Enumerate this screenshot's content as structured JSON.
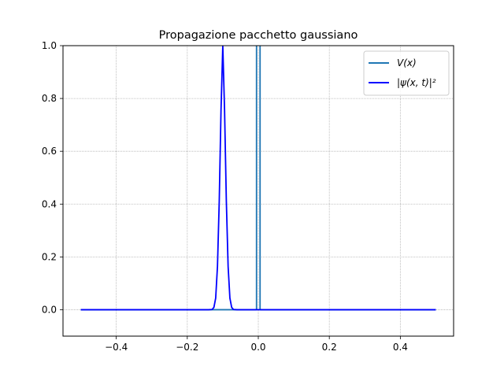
{
  "chart_data": {
    "type": "line",
    "title": "Propagazione pacchetto gaussiano",
    "xlabel": "",
    "ylabel": "",
    "xlim": [
      -0.55,
      0.55
    ],
    "ylim": [
      -0.1,
      1.0
    ],
    "grid": true,
    "legend_position": "top-right",
    "x_ticks": [
      -0.4,
      -0.2,
      0.0,
      0.2,
      0.4
    ],
    "x_tick_labels": [
      "−0.4",
      "−0.2",
      "0.0",
      "0.2",
      "0.4"
    ],
    "y_ticks": [
      0.0,
      0.2,
      0.4,
      0.6,
      0.8,
      1.0
    ],
    "y_tick_labels": [
      "0.0",
      "0.2",
      "0.4",
      "0.6",
      "0.8",
      "1.0"
    ],
    "series": [
      {
        "name": "V(x)",
        "color": "#1f77b4",
        "x": [
          -0.5,
          -0.005,
          -0.005,
          0.005,
          0.005,
          0.5
        ],
        "y": [
          0.0,
          0.0,
          1.2,
          1.2,
          0.0,
          0.0
        ]
      },
      {
        "name": "|ψ(x, t)|²",
        "color": "#0000ff",
        "x": [
          -0.5,
          -0.14,
          -0.13,
          -0.125,
          -0.12,
          -0.115,
          -0.11,
          -0.105,
          -0.1,
          -0.095,
          -0.09,
          -0.085,
          -0.08,
          -0.075,
          -0.07,
          -0.06,
          0.5
        ],
        "y": [
          0.0,
          0.0,
          0.001,
          0.009,
          0.044,
          0.164,
          0.411,
          0.755,
          1.0,
          0.755,
          0.411,
          0.164,
          0.044,
          0.009,
          0.001,
          0.0,
          0.0
        ]
      }
    ]
  }
}
